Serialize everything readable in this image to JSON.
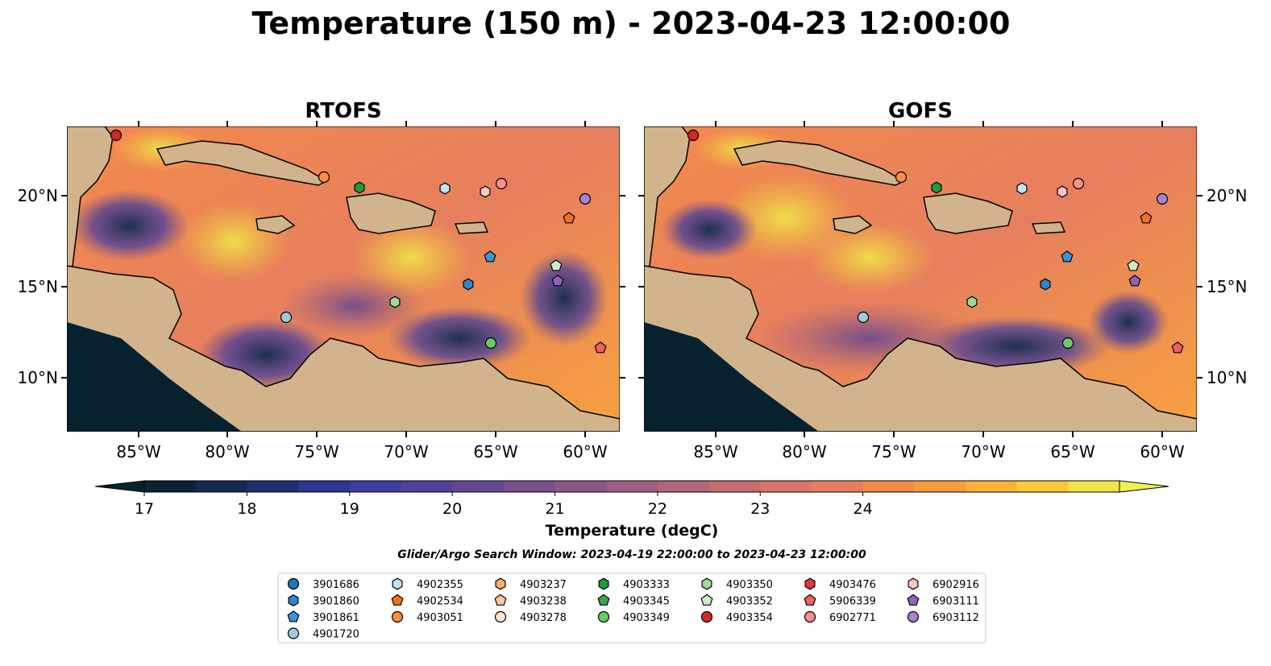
{
  "title": "Temperature (150 m) - 2023-04-23 12:00:00",
  "panels": [
    {
      "title": "RTOFS"
    },
    {
      "title": "GOFS"
    }
  ],
  "lon_ticks": [
    "85°W",
    "80°W",
    "75°W",
    "70°W",
    "65°W",
    "60°W"
  ],
  "lat_ticks": [
    "20°N",
    "15°N",
    "10°N"
  ],
  "colorbar": {
    "label": "Temperature (degC)",
    "ticks": [
      "17",
      "18",
      "19",
      "20",
      "21",
      "22",
      "23",
      "24"
    ],
    "colors": [
      "#0a2233",
      "#112a4f",
      "#1e2f70",
      "#2e3593",
      "#3f3aa2",
      "#523f9c",
      "#654791",
      "#774f8a",
      "#8a5685",
      "#9c5e7f",
      "#b1657a",
      "#c56d72",
      "#d7766a",
      "#e67f5e",
      "#f38a4c",
      "#f99b3e",
      "#fbb03a",
      "#f7c93b",
      "#efe44a"
    ]
  },
  "search_window": "Glider/Argo Search Window: 2023-04-19 22:00:00 to 2023-04-23 12:00:00",
  "legend": [
    {
      "id": "3901686",
      "marker": "circle",
      "color": "#1f77b4"
    },
    {
      "id": "3901860",
      "marker": "hexagon",
      "color": "#2f86c8"
    },
    {
      "id": "3901861",
      "marker": "pentagon",
      "color": "#3a95d6"
    },
    {
      "id": "4901720",
      "marker": "circle",
      "color": "#9ecae1"
    },
    {
      "id": "4902355",
      "marker": "hexagon",
      "color": "#c6e4f7"
    },
    {
      "id": "4902534",
      "marker": "pentagon",
      "color": "#f2711a"
    },
    {
      "id": "4903051",
      "marker": "circle",
      "color": "#fd8d3c"
    },
    {
      "id": "4903237",
      "marker": "hexagon",
      "color": "#fdae6b"
    },
    {
      "id": "4903238",
      "marker": "pentagon",
      "color": "#fdc89b"
    },
    {
      "id": "4903278",
      "marker": "circle",
      "color": "#fee3cc"
    },
    {
      "id": "4903333",
      "marker": "hexagon",
      "color": "#1e9a3c"
    },
    {
      "id": "4903345",
      "marker": "pentagon",
      "color": "#34a84b"
    },
    {
      "id": "4903349",
      "marker": "circle",
      "color": "#6acb6a"
    },
    {
      "id": "4903350",
      "marker": "hexagon",
      "color": "#a1d99b"
    },
    {
      "id": "4903352",
      "marker": "pentagon",
      "color": "#cdeec5"
    },
    {
      "id": "4903354",
      "marker": "circle",
      "color": "#d62728"
    },
    {
      "id": "4903476",
      "marker": "hexagon",
      "color": "#e0393b"
    },
    {
      "id": "5906339",
      "marker": "pentagon",
      "color": "#f06060"
    },
    {
      "id": "6902771",
      "marker": "circle",
      "color": "#f5908a"
    },
    {
      "id": "6902916",
      "marker": "hexagon",
      "color": "#fbc9c4"
    },
    {
      "id": "6903111",
      "marker": "pentagon",
      "color": "#8f63b8"
    },
    {
      "id": "6903112",
      "marker": "circle",
      "color": "#a883cc"
    }
  ]
}
